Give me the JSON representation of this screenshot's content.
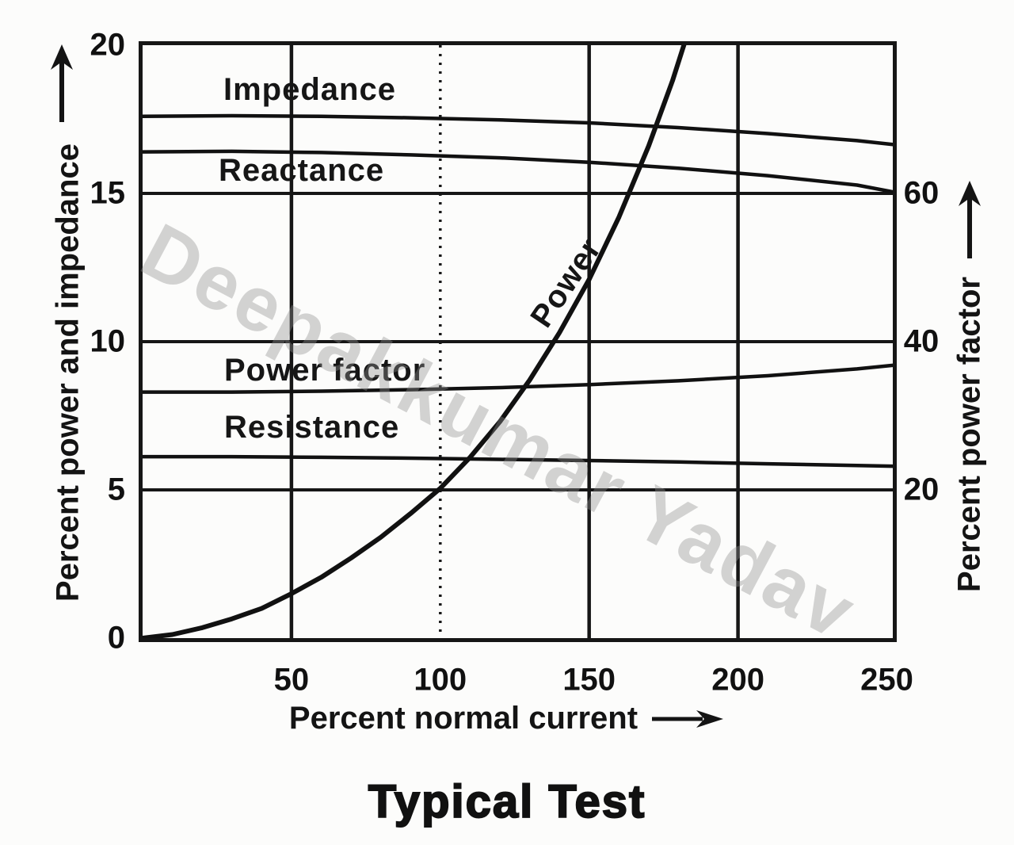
{
  "watermark": "Deepakkumar Yadav",
  "chart_data": {
    "type": "line",
    "title": "Typical Test",
    "xlabel": "Percent normal current",
    "ylabel_left": "Percent power and impedance",
    "ylabel_right": "Percent power factor",
    "xlim": [
      0,
      252
    ],
    "ylim_left": [
      0,
      20
    ],
    "ylim_right": [
      0,
      80
    ],
    "x_ticks": [
      50,
      100,
      150,
      200,
      250
    ],
    "y_ticks_left": [
      0,
      5,
      10,
      15,
      20
    ],
    "y_ticks_right": [
      20,
      40,
      60
    ],
    "grid": {
      "horizontal": [
        5,
        10,
        15
      ],
      "vertical_solid": [
        50,
        150,
        200
      ],
      "vertical_dotted": [
        100
      ]
    },
    "series": [
      {
        "name": "Impedance",
        "axis": "left",
        "x": [
          0,
          30,
          60,
          90,
          120,
          150,
          180,
          210,
          240,
          252
        ],
        "y": [
          17.6,
          17.62,
          17.6,
          17.55,
          17.48,
          17.38,
          17.22,
          17.02,
          16.78,
          16.65
        ]
      },
      {
        "name": "Reactance",
        "axis": "left",
        "x": [
          0,
          30,
          60,
          90,
          120,
          150,
          180,
          210,
          240,
          252
        ],
        "y": [
          16.4,
          16.42,
          16.38,
          16.3,
          16.2,
          16.05,
          15.85,
          15.6,
          15.28,
          15.05
        ]
      },
      {
        "name": "Power",
        "axis": "left",
        "x": [
          0,
          10,
          20,
          30,
          40,
          50,
          60,
          70,
          80,
          90,
          100,
          110,
          120,
          130,
          140,
          150,
          160,
          170,
          178,
          185
        ],
        "y": [
          0,
          0.12,
          0.35,
          0.65,
          1.0,
          1.5,
          2.05,
          2.7,
          3.4,
          4.2,
          5.05,
          6.1,
          7.3,
          8.7,
          10.3,
          12.1,
          14.2,
          16.6,
          18.8,
          21.0
        ]
      },
      {
        "name": "Power factor",
        "axis": "right",
        "x": [
          0,
          30,
          60,
          90,
          120,
          150,
          180,
          210,
          240,
          252
        ],
        "y": [
          8.3,
          8.3,
          8.33,
          8.38,
          8.45,
          8.55,
          8.68,
          8.85,
          9.08,
          9.2
        ]
      },
      {
        "name": "Resistance",
        "axis": "left",
        "x": [
          0,
          30,
          60,
          90,
          120,
          150,
          180,
          210,
          240,
          252
        ],
        "y": [
          6.12,
          6.12,
          6.1,
          6.07,
          6.03,
          5.99,
          5.94,
          5.88,
          5.82,
          5.8
        ]
      }
    ]
  }
}
